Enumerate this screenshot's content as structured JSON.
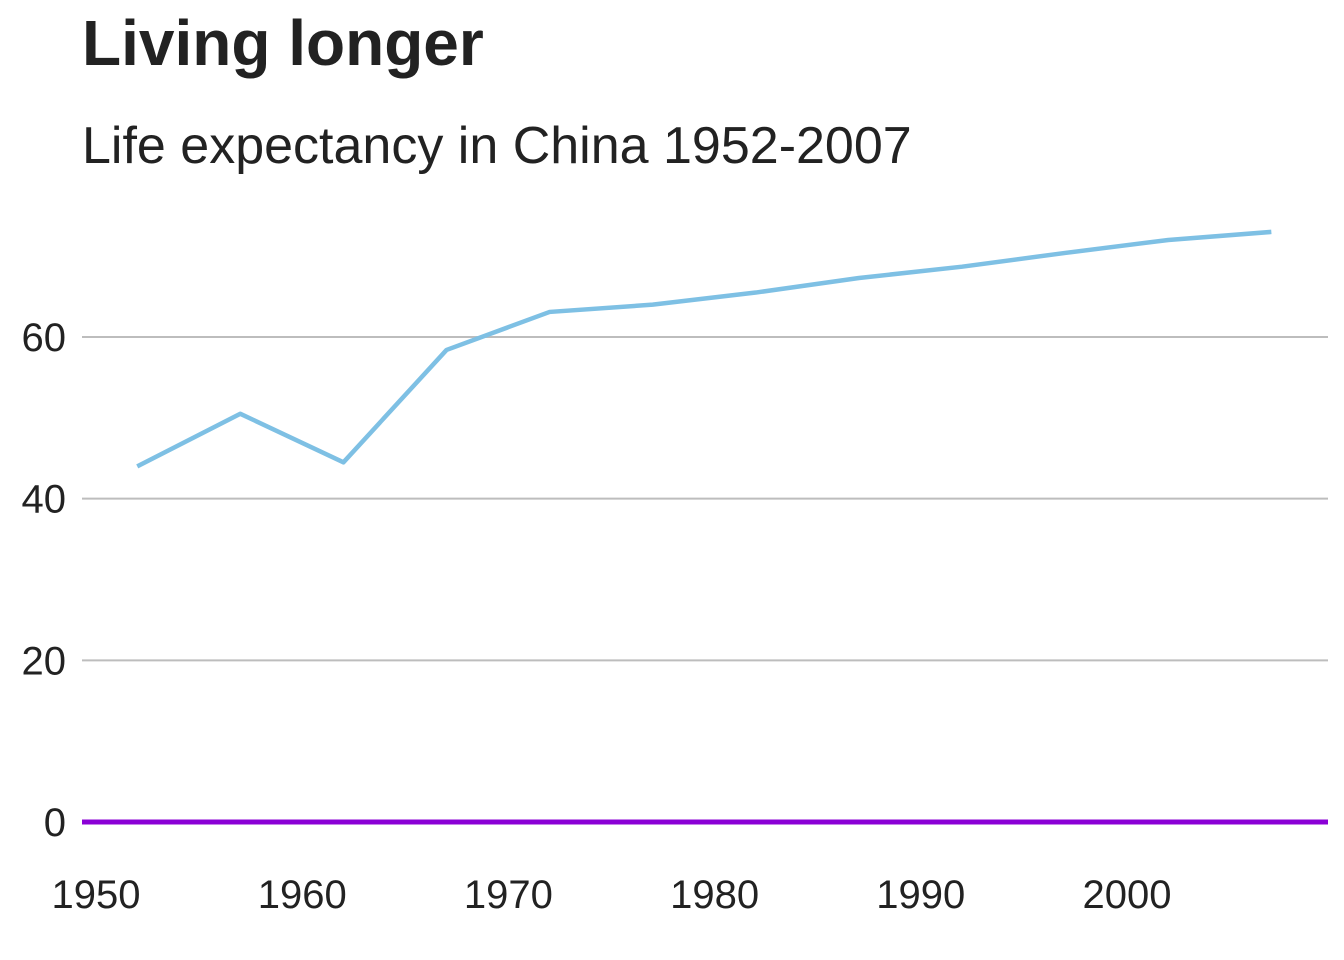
{
  "chart_data": {
    "type": "line",
    "title": "Living longer",
    "subtitle": "Life expectancy in China 1952-2007",
    "xlabel": "",
    "ylabel": "",
    "x": [
      1952,
      1957,
      1962,
      1967,
      1972,
      1977,
      1982,
      1987,
      1992,
      1997,
      2002,
      2007
    ],
    "series": [
      {
        "values": [
          44.0,
          50.5,
          44.5,
          58.4,
          63.1,
          64.0,
          65.5,
          67.3,
          68.7,
          70.4,
          72.0,
          73.0
        ],
        "color": "#7ec0e4"
      }
    ],
    "x_ticks": [
      "1950",
      "1960",
      "1970",
      "1980",
      "1990",
      "2000"
    ],
    "y_ticks": [
      "0",
      "20",
      "40",
      "60"
    ],
    "xlim": [
      1950,
      2010
    ],
    "ylim": [
      0,
      75
    ],
    "grid": "horizontal",
    "baseline": {
      "value": 0,
      "color": "#8b00d6"
    },
    "gridline_color": "#bdbdbd",
    "legend": "none"
  }
}
